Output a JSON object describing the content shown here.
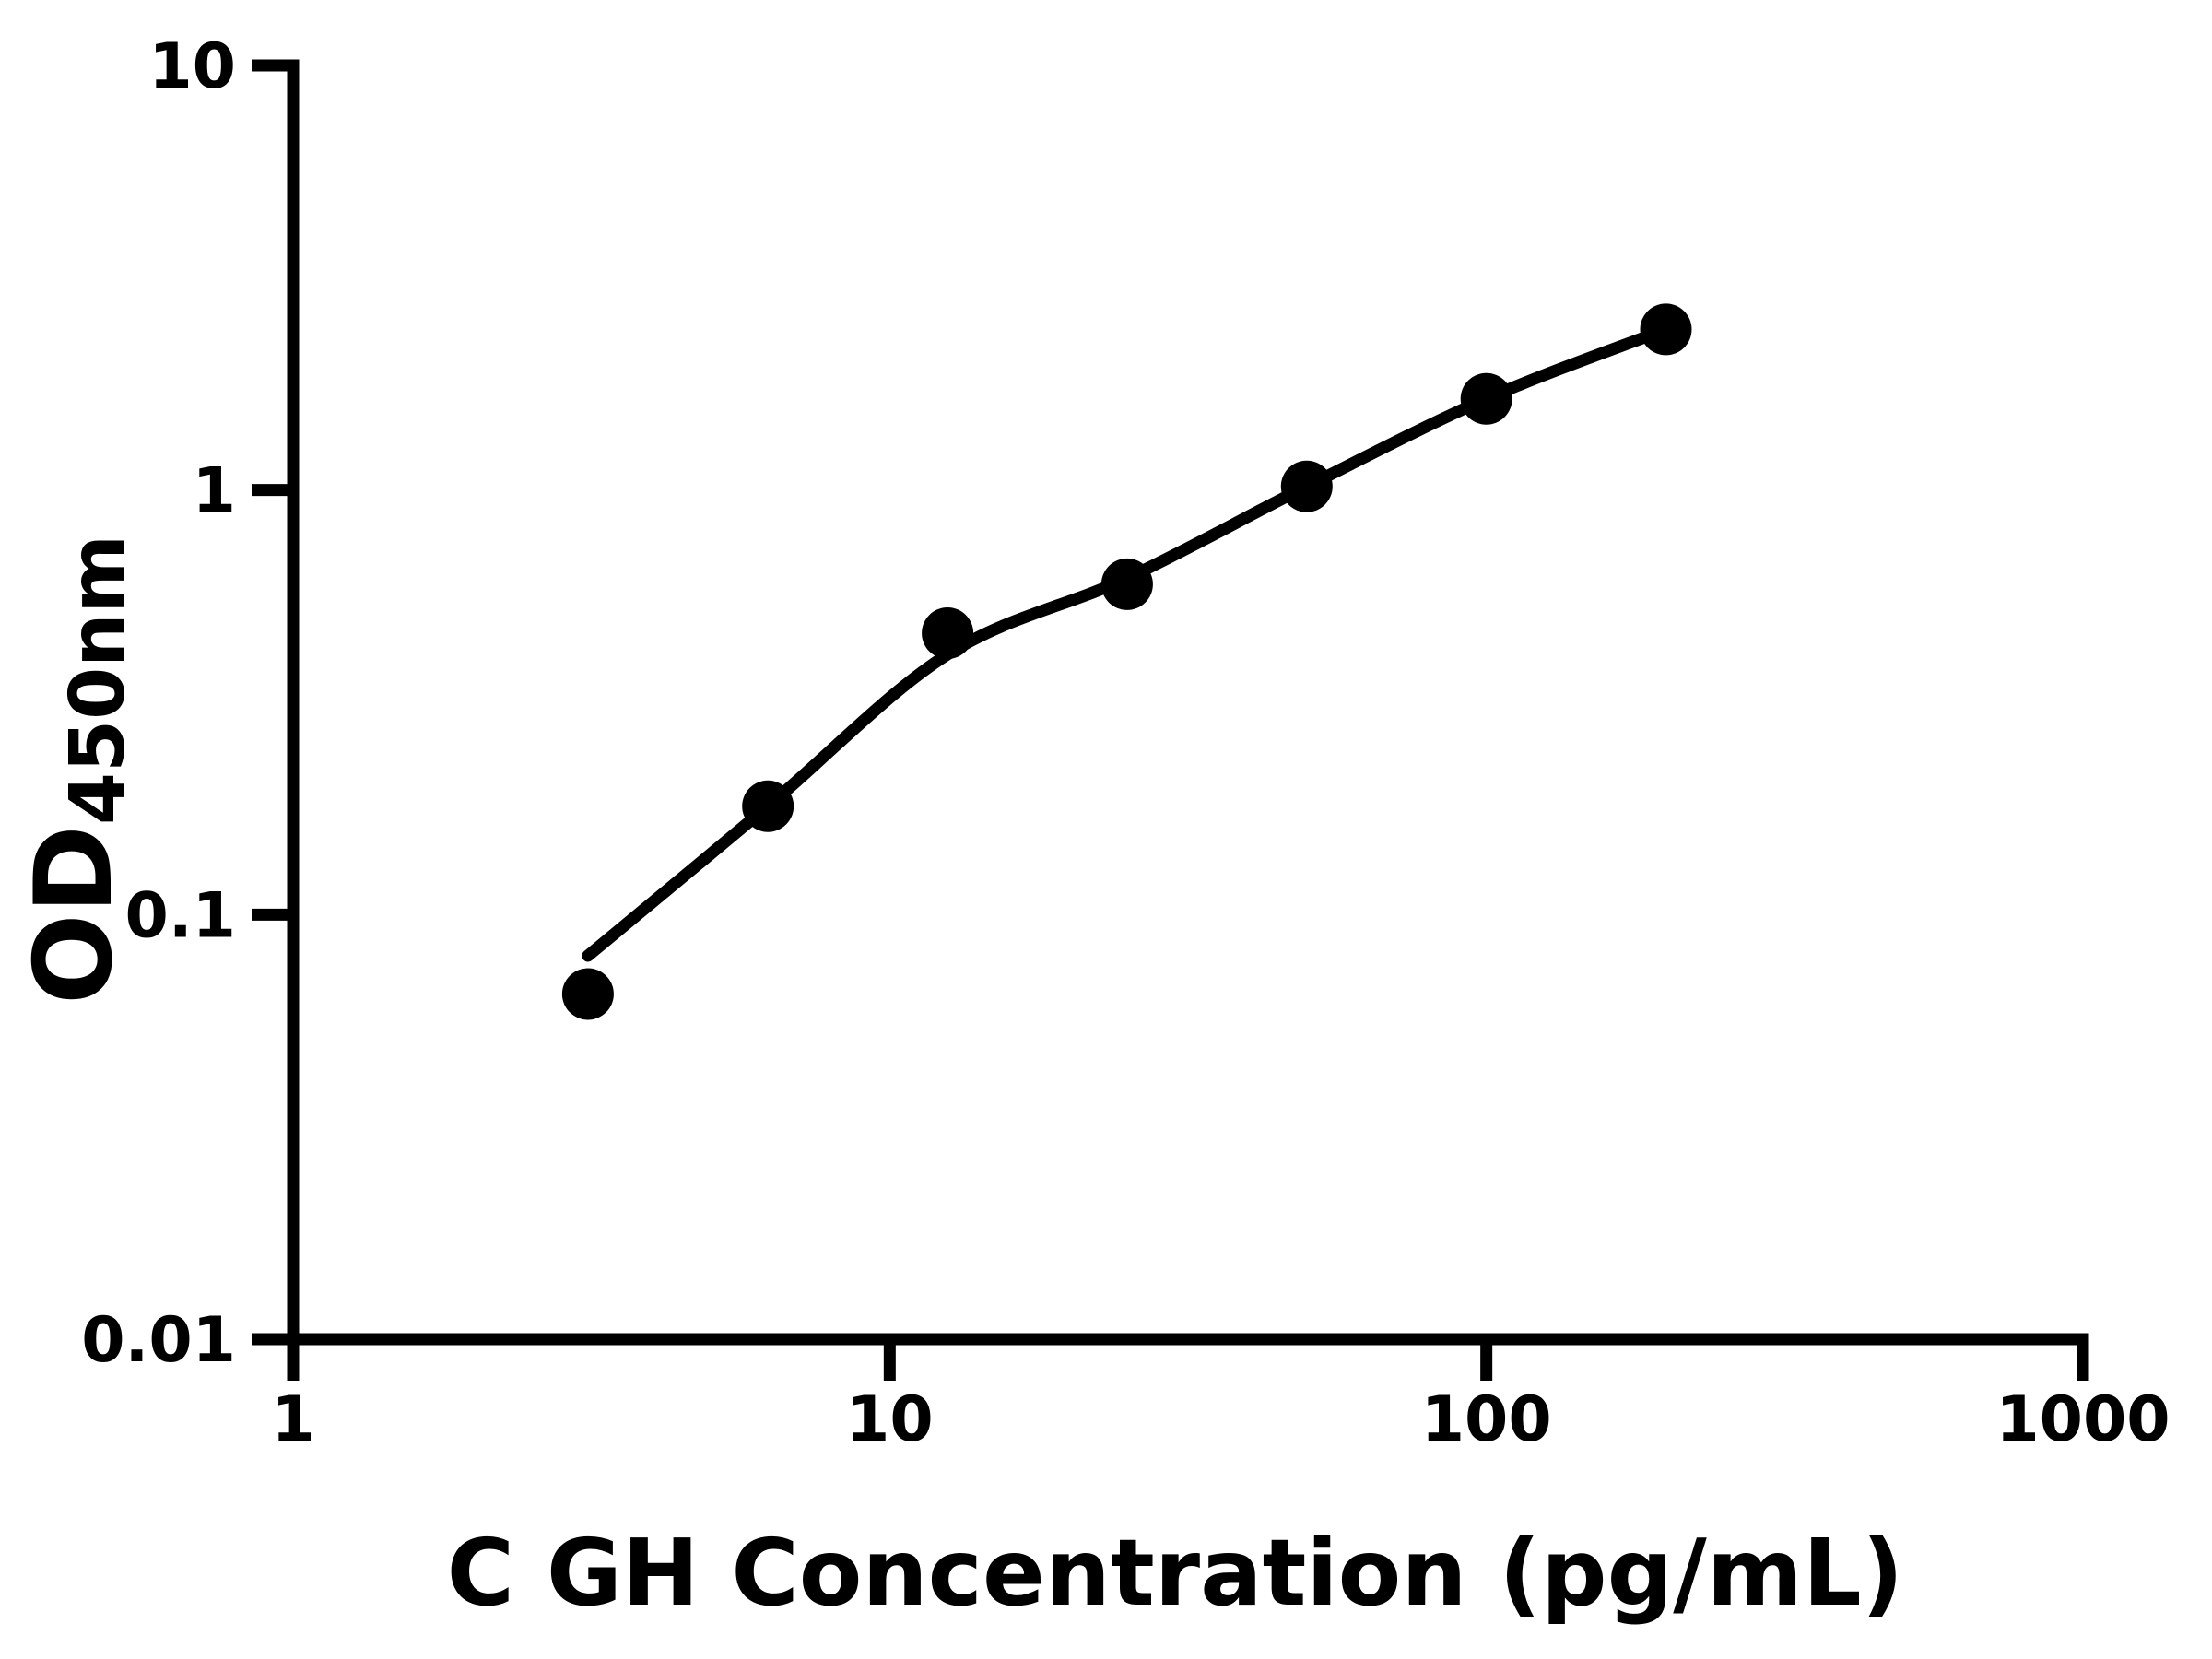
{
  "figure": {
    "background": "#ffffff",
    "foreground": "#000000"
  },
  "chart_data": {
    "type": "scatter",
    "title": "",
    "xlabel": "C GH Concentration (pg/mL)",
    "ylabel_main": "OD",
    "ylabel_sub": "450nm",
    "x_scale": "log",
    "y_scale": "log",
    "xlim": [
      1,
      1000
    ],
    "ylim": [
      0.01,
      10
    ],
    "grid": false,
    "legend": false,
    "x_ticks": [
      {
        "value": 1,
        "label": "1"
      },
      {
        "value": 10,
        "label": "10"
      },
      {
        "value": 100,
        "label": "100"
      },
      {
        "value": 1000,
        "label": "1000"
      }
    ],
    "y_ticks": [
      {
        "value": 0.01,
        "label": "0.01"
      },
      {
        "value": 0.1,
        "label": "0.1"
      },
      {
        "value": 1,
        "label": "1"
      },
      {
        "value": 10,
        "label": "10"
      }
    ],
    "series": [
      {
        "name": "standard-points",
        "marker": "circle",
        "color": "#000000",
        "points": [
          [
            3.12,
            0.065
          ],
          [
            6.25,
            0.18
          ],
          [
            12.5,
            0.46
          ],
          [
            25,
            0.6
          ],
          [
            50,
            1.02
          ],
          [
            100,
            1.64
          ],
          [
            200,
            2.39
          ]
        ]
      }
    ],
    "fit_curve": {
      "name": "fitted-standard-curve",
      "color": "#000000",
      "points": [
        [
          3.12,
          0.08
        ],
        [
          6.25,
          0.18
        ],
        [
          12.5,
          0.41
        ],
        [
          25,
          0.62
        ],
        [
          50,
          1.02
        ],
        [
          100,
          1.64
        ],
        [
          200,
          2.39
        ]
      ]
    }
  }
}
